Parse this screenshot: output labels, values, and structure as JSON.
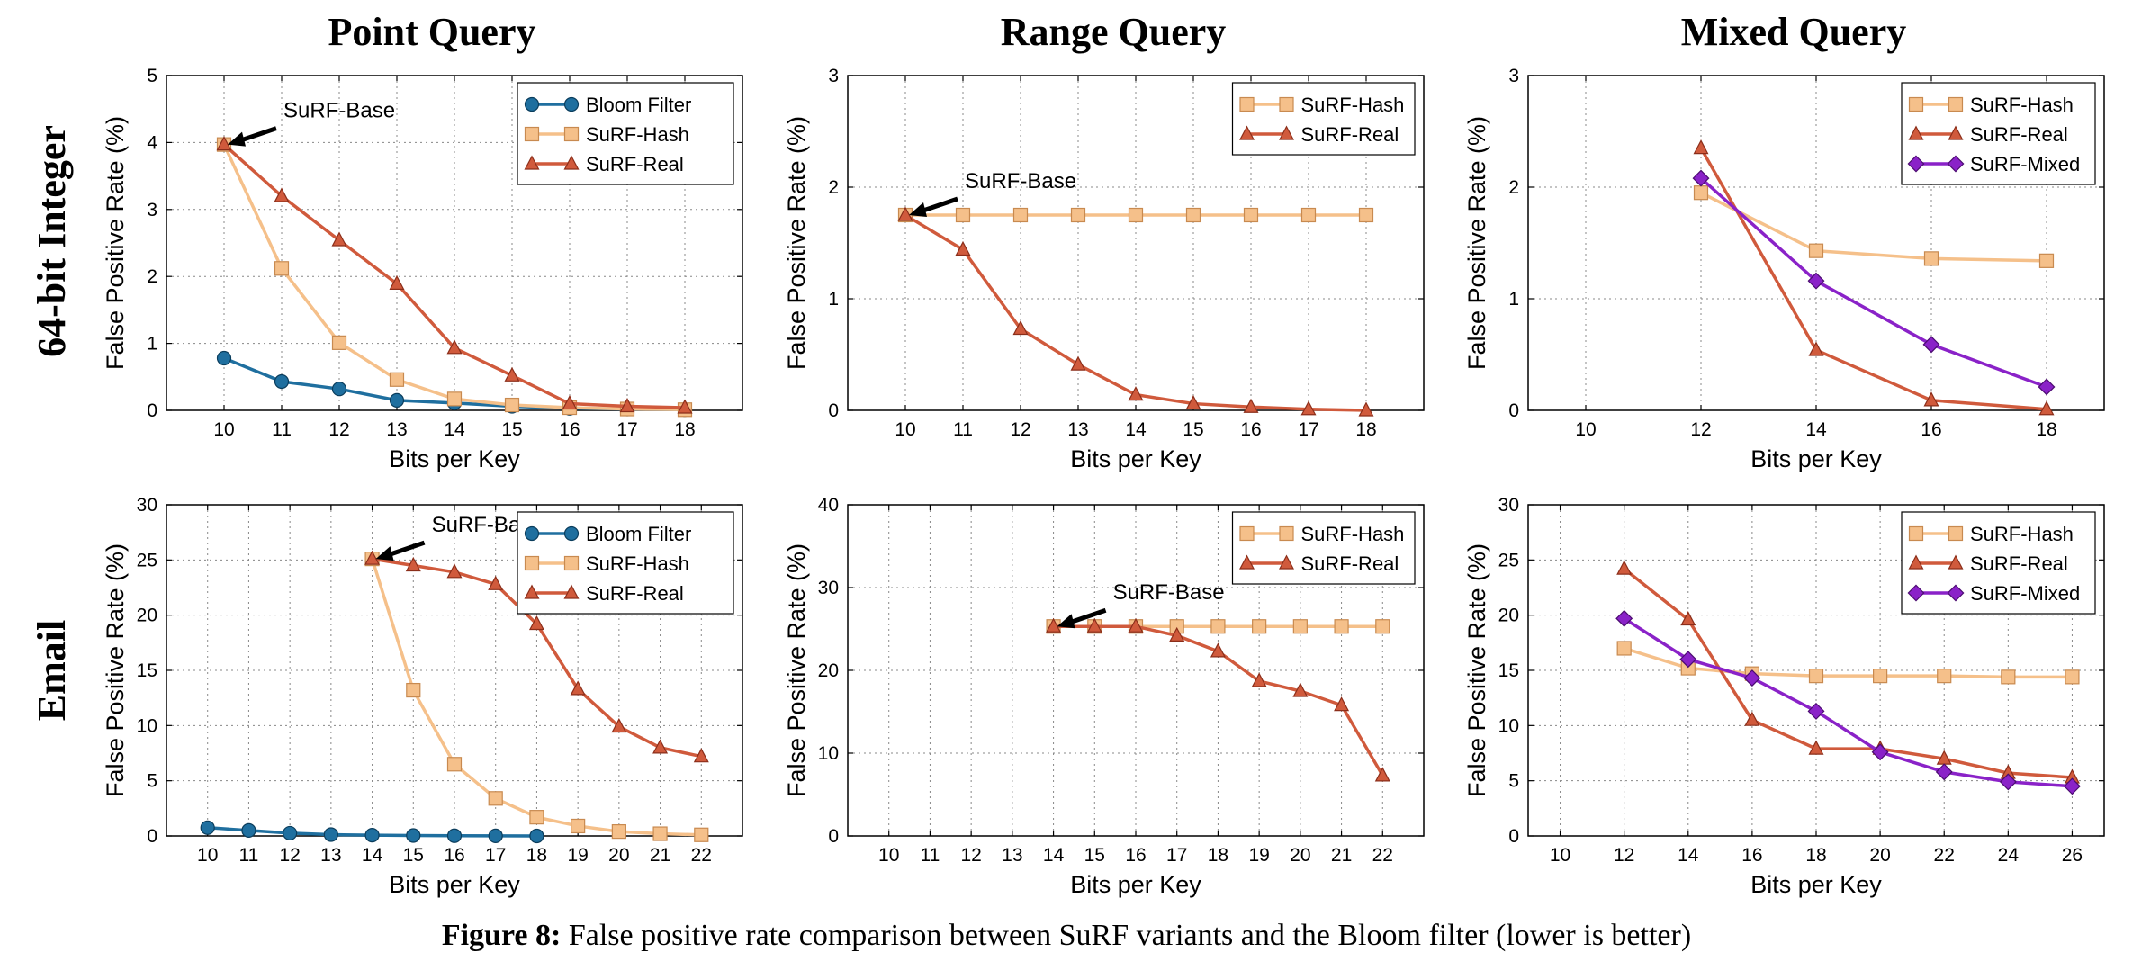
{
  "figure": {
    "col_titles": [
      "Point Query",
      "Range Query",
      "Mixed Query"
    ],
    "row_titles": [
      "64-bit Integer",
      "Email"
    ],
    "caption_bold": "Figure 8:",
    "caption_text": " False positive rate comparison between SuRF variants and the Bloom filter (lower is better)"
  },
  "colors": {
    "bloom": "#1f6f9f",
    "hash": "#f5c08a",
    "hash_edge": "#c88a50",
    "real": "#d05a3c",
    "real_edge": "#8b2e1a",
    "mixed": "#8a22c8",
    "mixed_edge": "#4b0c70"
  },
  "chart_data": [
    {
      "id": "int-point",
      "type": "line",
      "xlabel": "Bits per Key",
      "ylabel": "False Positive Rate (%)",
      "xlim": [
        9,
        19
      ],
      "ylim": [
        0,
        5
      ],
      "xticks": [
        10,
        11,
        12,
        13,
        14,
        15,
        16,
        17,
        18
      ],
      "yticks": [
        0,
        1,
        2,
        3,
        4,
        5
      ],
      "grid": true,
      "legend": "top-right",
      "series": [
        {
          "name": "Bloom Filter",
          "marker": "circle",
          "color": "bloom",
          "x": [
            10,
            11,
            12,
            13,
            14,
            15,
            16,
            17,
            18
          ],
          "y": [
            0.78,
            0.43,
            0.32,
            0.15,
            0.11,
            0.06,
            0.03,
            0.02,
            0.01
          ]
        },
        {
          "name": "SuRF-Hash",
          "marker": "square",
          "color": "hash",
          "x": [
            10,
            11,
            12,
            13,
            14,
            15,
            16,
            17,
            18
          ],
          "y": [
            3.97,
            2.12,
            1.01,
            0.46,
            0.17,
            0.08,
            0.04,
            0.02,
            0.01
          ]
        },
        {
          "name": "SuRF-Real",
          "marker": "triangle",
          "color": "real",
          "x": [
            10,
            11,
            12,
            13,
            14,
            15,
            16,
            17,
            18
          ],
          "y": [
            3.97,
            3.2,
            2.54,
            1.89,
            0.93,
            0.52,
            0.1,
            0.06,
            0.04
          ]
        }
      ],
      "annotation": {
        "text": "SuRF-Base",
        "x": 10,
        "y": 3.97
      }
    },
    {
      "id": "int-range",
      "type": "line",
      "xlabel": "Bits per Key",
      "ylabel": "False Positive Rate (%)",
      "xlim": [
        9,
        19
      ],
      "ylim": [
        0,
        3
      ],
      "xticks": [
        10,
        11,
        12,
        13,
        14,
        15,
        16,
        17,
        18
      ],
      "yticks": [
        0,
        1,
        2,
        3
      ],
      "grid": true,
      "legend": "top-right",
      "series": [
        {
          "name": "SuRF-Hash",
          "marker": "square",
          "color": "hash",
          "x": [
            10,
            11,
            12,
            13,
            14,
            15,
            16,
            17,
            18
          ],
          "y": [
            1.75,
            1.75,
            1.75,
            1.75,
            1.75,
            1.75,
            1.75,
            1.75,
            1.75
          ]
        },
        {
          "name": "SuRF-Real",
          "marker": "triangle",
          "color": "real",
          "x": [
            10,
            11,
            12,
            13,
            14,
            15,
            16,
            17,
            18
          ],
          "y": [
            1.75,
            1.44,
            0.73,
            0.41,
            0.14,
            0.06,
            0.03,
            0.01,
            0.0
          ]
        }
      ],
      "annotation": {
        "text": "SuRF-Base",
        "x": 10,
        "y": 1.75
      }
    },
    {
      "id": "int-mixed",
      "type": "line",
      "xlabel": "Bits per Key",
      "ylabel": "False Positive Rate (%)",
      "xlim": [
        9,
        19
      ],
      "ylim": [
        0,
        3
      ],
      "xticks": [
        10,
        12,
        14,
        16,
        18
      ],
      "yticks": [
        0,
        1,
        2,
        3
      ],
      "grid": true,
      "legend": "top-right",
      "series": [
        {
          "name": "SuRF-Hash",
          "marker": "square",
          "color": "hash",
          "x": [
            12,
            14,
            16,
            18
          ],
          "y": [
            1.95,
            1.43,
            1.36,
            1.34
          ]
        },
        {
          "name": "SuRF-Real",
          "marker": "triangle",
          "color": "real",
          "x": [
            12,
            14,
            16,
            18
          ],
          "y": [
            2.35,
            0.54,
            0.09,
            0.01
          ]
        },
        {
          "name": "SuRF-Mixed",
          "marker": "diamond",
          "color": "mixed",
          "x": [
            12,
            14,
            16,
            18
          ],
          "y": [
            2.08,
            1.16,
            0.59,
            0.21
          ]
        }
      ]
    },
    {
      "id": "email-point",
      "type": "line",
      "xlabel": "Bits per Key",
      "ylabel": "False Positive Rate (%)",
      "xlim": [
        9,
        23
      ],
      "ylim": [
        0,
        30
      ],
      "xticks": [
        10,
        11,
        12,
        13,
        14,
        15,
        16,
        17,
        18,
        19,
        20,
        21,
        22
      ],
      "yticks": [
        0,
        5,
        10,
        15,
        20,
        25,
        30
      ],
      "grid": true,
      "legend": "top-right",
      "series": [
        {
          "name": "Bloom Filter",
          "marker": "circle",
          "color": "bloom",
          "x": [
            10,
            11,
            12,
            13,
            14,
            15,
            16,
            17,
            18
          ],
          "y": [
            0.75,
            0.5,
            0.25,
            0.12,
            0.07,
            0.04,
            0.02,
            0.01,
            0.0
          ]
        },
        {
          "name": "SuRF-Hash",
          "marker": "square",
          "color": "hash",
          "x": [
            14,
            15,
            16,
            17,
            18,
            19,
            20,
            21,
            22
          ],
          "y": [
            25.1,
            13.2,
            6.5,
            3.4,
            1.7,
            0.9,
            0.4,
            0.2,
            0.1
          ]
        },
        {
          "name": "SuRF-Real",
          "marker": "triangle",
          "color": "real",
          "x": [
            14,
            15,
            16,
            17,
            18,
            19,
            20,
            21,
            22
          ],
          "y": [
            25.1,
            24.5,
            23.9,
            22.8,
            19.2,
            13.3,
            9.9,
            8.0,
            7.2
          ]
        }
      ],
      "annotation": {
        "text": "SuRF-Base",
        "x": 14,
        "y": 25.1
      }
    },
    {
      "id": "email-range",
      "type": "line",
      "xlabel": "Bits per Key",
      "ylabel": "False Positive Rate (%)",
      "xlim": [
        9,
        23
      ],
      "ylim": [
        0,
        40
      ],
      "xticks": [
        10,
        11,
        12,
        13,
        14,
        15,
        16,
        17,
        18,
        19,
        20,
        21,
        22
      ],
      "yticks": [
        0,
        10,
        20,
        30,
        40
      ],
      "grid": true,
      "legend": "top-right",
      "series": [
        {
          "name": "SuRF-Hash",
          "marker": "square",
          "color": "hash",
          "x": [
            14,
            15,
            16,
            17,
            18,
            19,
            20,
            21,
            22
          ],
          "y": [
            25.3,
            25.3,
            25.3,
            25.3,
            25.3,
            25.3,
            25.3,
            25.3,
            25.3
          ]
        },
        {
          "name": "SuRF-Real",
          "marker": "triangle",
          "color": "real",
          "x": [
            14,
            15,
            16,
            17,
            18,
            19,
            20,
            21,
            22
          ],
          "y": [
            25.3,
            25.3,
            25.3,
            24.2,
            22.3,
            18.7,
            17.5,
            15.8,
            7.3
          ]
        }
      ],
      "annotation": {
        "text": "SuRF-Base",
        "x": 14,
        "y": 25.3
      }
    },
    {
      "id": "email-mixed",
      "type": "line",
      "xlabel": "Bits per Key",
      "ylabel": "False Positive Rate (%)",
      "xlim": [
        9,
        27
      ],
      "ylim": [
        0,
        30
      ],
      "xticks": [
        10,
        12,
        14,
        16,
        18,
        20,
        22,
        24,
        26
      ],
      "yticks": [
        0,
        5,
        10,
        15,
        20,
        25,
        30
      ],
      "grid": true,
      "legend": "top-right",
      "series": [
        {
          "name": "SuRF-Hash",
          "marker": "square",
          "color": "hash",
          "x": [
            12,
            14,
            16,
            18,
            20,
            22,
            24,
            26
          ],
          "y": [
            17.0,
            15.2,
            14.7,
            14.5,
            14.5,
            14.5,
            14.4,
            14.4
          ]
        },
        {
          "name": "SuRF-Real",
          "marker": "triangle",
          "color": "real",
          "x": [
            12,
            14,
            16,
            18,
            20,
            22,
            24,
            26
          ],
          "y": [
            24.2,
            19.6,
            10.5,
            7.9,
            7.9,
            7.0,
            5.7,
            5.3
          ]
        },
        {
          "name": "SuRF-Mixed",
          "marker": "diamond",
          "color": "mixed",
          "x": [
            12,
            14,
            16,
            18,
            20,
            22,
            24,
            26
          ],
          "y": [
            19.7,
            16.0,
            14.3,
            11.3,
            7.6,
            5.8,
            4.9,
            4.5
          ]
        }
      ]
    }
  ]
}
